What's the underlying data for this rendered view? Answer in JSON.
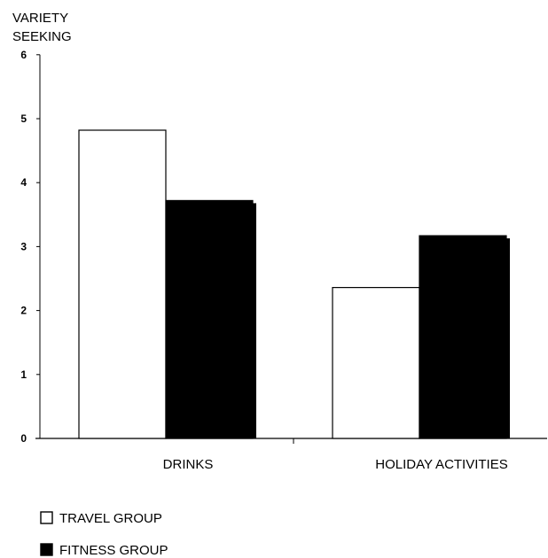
{
  "chart_data": {
    "type": "bar",
    "ylabel": [
      "VARIETY",
      "SEEKING"
    ],
    "ylim": [
      0,
      6
    ],
    "yticks": [
      "0",
      "1",
      "2",
      "3",
      "4",
      "5",
      "6"
    ],
    "categories": [
      "DRINKS",
      "HOLIDAY ACTIVITIES"
    ],
    "series": [
      {
        "name": "TRAVEL GROUP",
        "color": "#ffffff",
        "values": [
          4.82,
          2.36
        ]
      },
      {
        "name": "FITNESS GROUP",
        "color": "#000000",
        "values": [
          3.72,
          3.17
        ]
      }
    ],
    "grid": false,
    "legend": "bottom-left"
  }
}
